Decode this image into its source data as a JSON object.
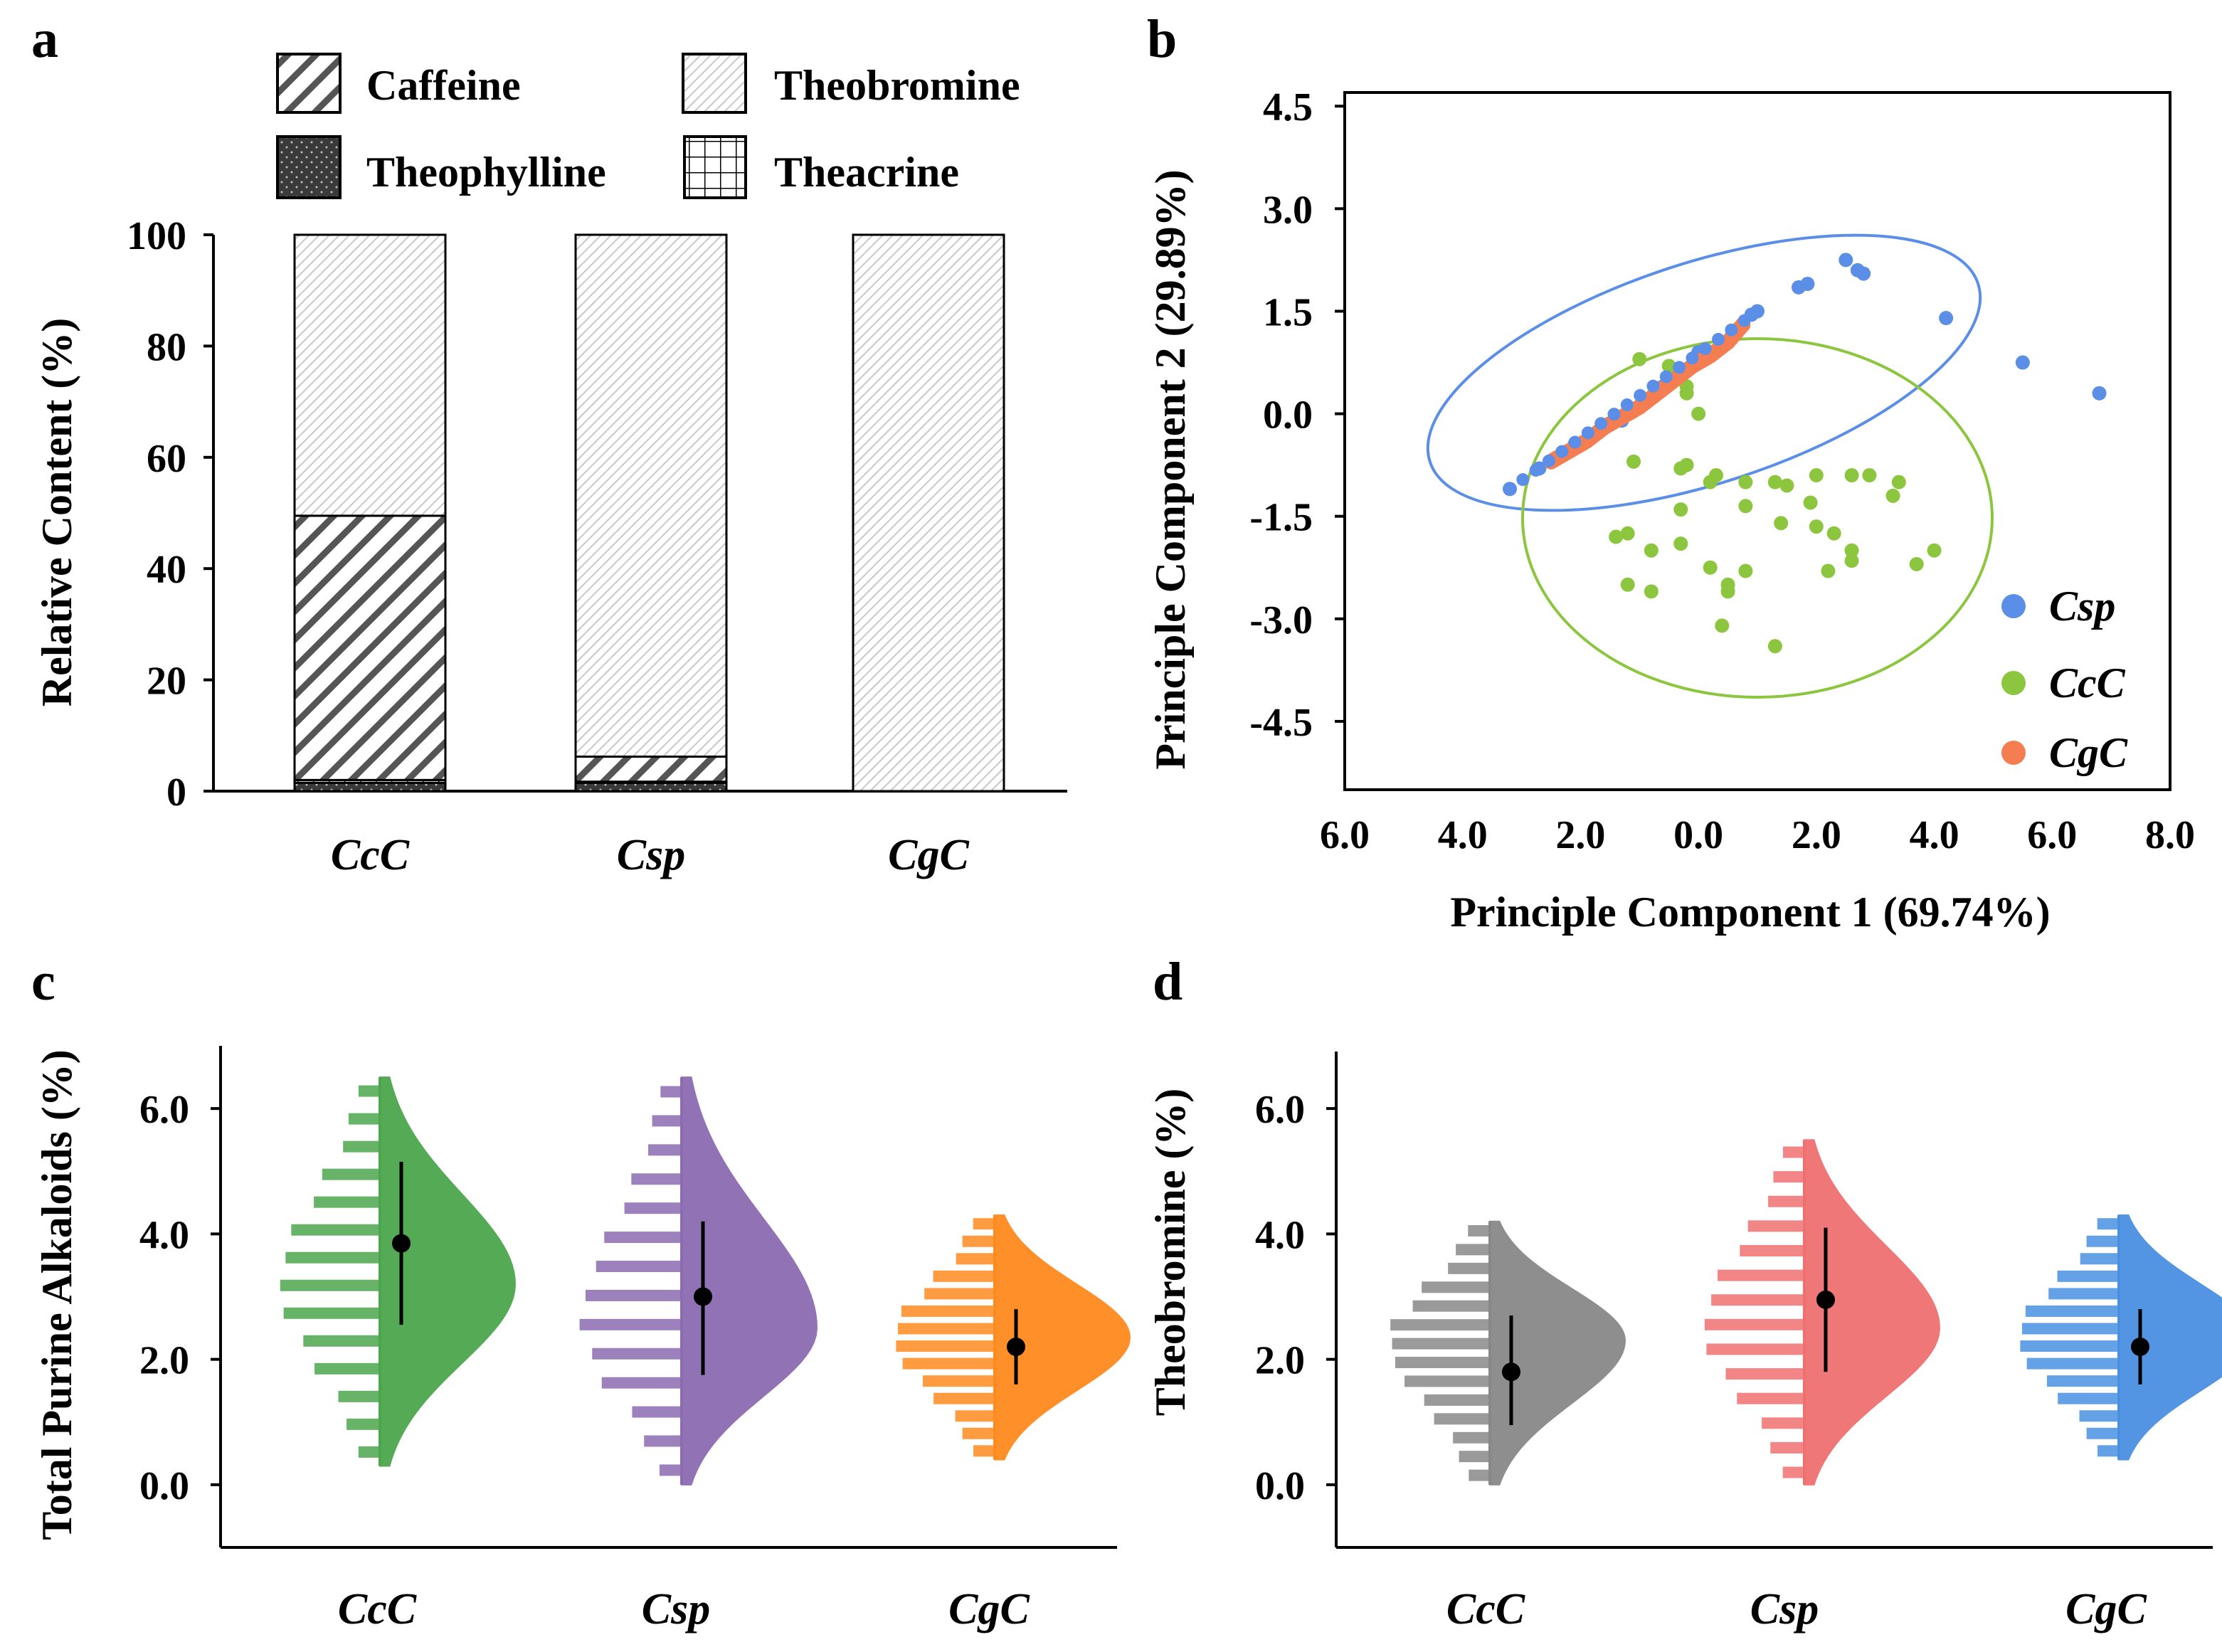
{
  "colors": {
    "csp_blue": "#5B8EE6",
    "ccc_green": "#8CC63E",
    "cgc_orange": "#F47E52",
    "violin_green": "#4CA64C",
    "violin_purple": "#8C6BB1",
    "violin_orange": "#FF8A1E",
    "violin_gray": "#888888",
    "violin_red": "#F07070",
    "violin_blue": "#4A90E2"
  },
  "chart_data": [
    {
      "id": "a",
      "type": "bar",
      "stacked": true,
      "panel_label": "a",
      "ylabel": "Relative Content (%)",
      "ylim": [
        0,
        100
      ],
      "yticks": [
        "0",
        "20",
        "40",
        "60",
        "80",
        "100"
      ],
      "categories": [
        "CcC",
        "Csp",
        "CgC"
      ],
      "legend": [
        "Caffeine",
        "Theophylline",
        "Theobromine",
        "Theacrine"
      ],
      "series": [
        {
          "name": "Theophylline",
          "values": [
            1.5,
            1.5,
            0
          ]
        },
        {
          "name": "Theacrine",
          "values": [
            0.5,
            0.2,
            0
          ]
        },
        {
          "name": "Caffeine",
          "values": [
            47.5,
            4.5,
            0
          ]
        },
        {
          "name": "Theobromine",
          "values": [
            50.5,
            93.8,
            100
          ]
        }
      ]
    },
    {
      "id": "b",
      "type": "scatter",
      "panel_label": "b",
      "xlabel": "Principle Component 1 (69.74%)",
      "ylabel": "Principle Component 2  (29.89%)",
      "xticks": [
        "6.0",
        "4.0",
        "2.0",
        "0.0",
        "2.0",
        "4.0",
        "6.0",
        "8.0"
      ],
      "yticks": [
        "4.5",
        "3.0",
        "1.5",
        "0.0",
        "-1.5",
        "-3.0",
        "-4.5"
      ],
      "xlim": [
        -6,
        8
      ],
      "ylim": [
        -5.5,
        4.7
      ],
      "legend": [
        "Csp",
        "CcC",
        "CgC"
      ],
      "series": [
        {
          "name": "Csp",
          "points": [
            [
              -3.2,
              -1.1
            ],
            [
              -2.7,
              -0.8
            ],
            [
              -2.1,
              -0.45
            ],
            [
              -1.3,
              -0.1
            ],
            [
              -0.6,
              0.4
            ],
            [
              0,
              0.9
            ],
            [
              0.6,
              1.2
            ],
            [
              0.9,
              1.45
            ],
            [
              1.0,
              1.5
            ],
            [
              1.7,
              1.85
            ],
            [
              1.85,
              1.9
            ],
            [
              2.5,
              2.25
            ],
            [
              2.7,
              2.1
            ],
            [
              2.8,
              2.05
            ],
            [
              4.2,
              1.4
            ],
            [
              5.5,
              0.75
            ],
            [
              6.8,
              0.3
            ]
          ]
        },
        {
          "name": "CcC",
          "points": [
            [
              -1.0,
              0.8
            ],
            [
              -0.5,
              0.7
            ],
            [
              -0.2,
              0.4
            ],
            [
              -0.2,
              0.3
            ],
            [
              0,
              0.0
            ],
            [
              -1.1,
              -0.7
            ],
            [
              -0.2,
              -0.75
            ],
            [
              -0.3,
              -0.8
            ],
            [
              0.2,
              -1.0
            ],
            [
              0.3,
              -0.9
            ],
            [
              0.8,
              -1.0
            ],
            [
              1.3,
              -1.0
            ],
            [
              1.5,
              -1.05
            ],
            [
              2.0,
              -0.9
            ],
            [
              2.6,
              -0.9
            ],
            [
              2.9,
              -0.9
            ],
            [
              3.4,
              -1.0
            ],
            [
              3.3,
              -1.2
            ],
            [
              -1.4,
              -1.8
            ],
            [
              -1.2,
              -1.75
            ],
            [
              -0.3,
              -1.4
            ],
            [
              0.8,
              -1.35
            ],
            [
              1.4,
              -1.6
            ],
            [
              1.9,
              -1.3
            ],
            [
              2.0,
              -1.65
            ],
            [
              2.3,
              -1.75
            ],
            [
              -0.8,
              -2.0
            ],
            [
              -0.3,
              -1.9
            ],
            [
              2.6,
              -2.0
            ],
            [
              2.6,
              -2.15
            ],
            [
              4.0,
              -2.0
            ],
            [
              3.7,
              -2.2
            ],
            [
              -1.2,
              -2.5
            ],
            [
              -0.8,
              -2.6
            ],
            [
              0.5,
              -2.5
            ],
            [
              0.5,
              -2.6
            ],
            [
              0.8,
              -2.3
            ],
            [
              2.2,
              -2.3
            ],
            [
              0.2,
              -2.25
            ],
            [
              0.4,
              -3.1
            ],
            [
              1.3,
              -3.4
            ]
          ]
        },
        {
          "name": "CgC",
          "points": [
            [
              -2.5,
              -0.7
            ],
            [
              -2.2,
              -0.55
            ],
            [
              -1.9,
              -0.4
            ],
            [
              -1.6,
              -0.2
            ],
            [
              -1.3,
              -0.05
            ],
            [
              -1.0,
              0.1
            ],
            [
              -0.7,
              0.3
            ],
            [
              -0.4,
              0.5
            ],
            [
              -0.1,
              0.7
            ],
            [
              0.2,
              0.85
            ],
            [
              0.5,
              1.05
            ],
            [
              0.8,
              1.35
            ]
          ]
        }
      ],
      "ellipses": [
        {
          "group": "Csp"
        },
        {
          "group": "CcC"
        }
      ]
    },
    {
      "id": "c",
      "type": "violin",
      "panel_label": "c",
      "ylabel": "Total Purine Alkaloids (%)",
      "yticks": [
        "0.0",
        "2.0",
        "4.0",
        "6.0"
      ],
      "ylim": [
        -1,
        7
      ],
      "groups": [
        {
          "name": "CcC",
          "color_key": "violin_green",
          "mean": 3.85,
          "ci": [
            2.55,
            5.15
          ],
          "range": [
            0.3,
            6.5
          ],
          "mode": 3.2
        },
        {
          "name": "Csp",
          "color_key": "violin_purple",
          "mean": 3.0,
          "ci": [
            1.75,
            4.2
          ],
          "range": [
            0.0,
            6.5
          ],
          "mode": 2.5
        },
        {
          "name": "CgC",
          "color_key": "violin_orange",
          "mean": 2.2,
          "ci": [
            1.6,
            2.8
          ],
          "range": [
            0.4,
            4.3
          ],
          "mode": 2.35
        }
      ]
    },
    {
      "id": "d",
      "type": "violin",
      "panel_label": "d",
      "ylabel": "Theobromine (%)",
      "yticks": [
        "0.0",
        "2.0",
        "4.0",
        "6.0"
      ],
      "ylim": [
        -1,
        7
      ],
      "groups": [
        {
          "name": "CcC",
          "color_key": "violin_gray",
          "mean": 1.8,
          "ci": [
            0.95,
            2.7
          ],
          "range": [
            0.0,
            4.2
          ],
          "mode": 2.3
        },
        {
          "name": "Csp",
          "color_key": "violin_red",
          "mean": 2.95,
          "ci": [
            1.8,
            4.1
          ],
          "range": [
            0.0,
            5.5
          ],
          "mode": 2.5
        },
        {
          "name": "CgC",
          "color_key": "violin_blue",
          "mean": 2.2,
          "ci": [
            1.6,
            2.8
          ],
          "range": [
            0.4,
            4.3
          ],
          "mode": 2.35
        }
      ]
    }
  ]
}
